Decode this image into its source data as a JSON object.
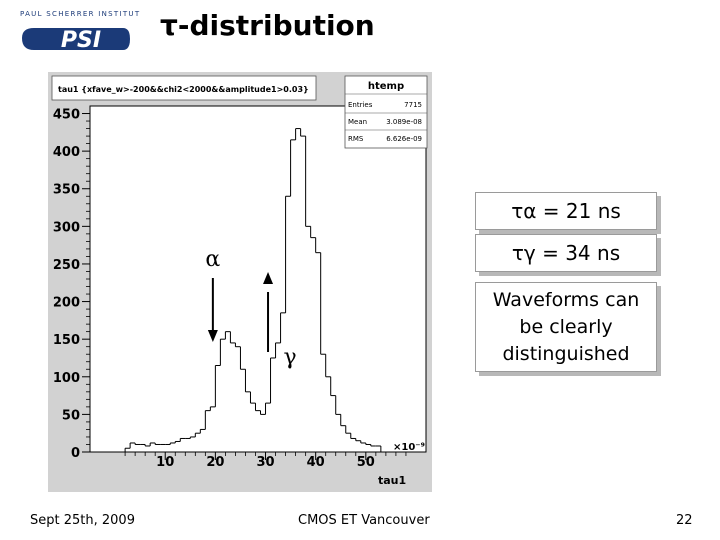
{
  "header": {
    "logo_top_text": "PAUL SCHERRER INSTITUT",
    "logo_text": "PSI",
    "title": "τ-distribution"
  },
  "chart_data": {
    "type": "histogram",
    "title": "tau1 {xfave_w>-200&&chi2<2000&&amplitude1>0.03}",
    "xlabel": "tau1",
    "x_multiplier_label": "×10⁻⁹",
    "xlim": [
      -5,
      62
    ],
    "ylim": [
      0,
      460
    ],
    "x_ticks": [
      10,
      20,
      30,
      40,
      50
    ],
    "y_ticks": [
      0,
      50,
      100,
      150,
      200,
      250,
      300,
      350,
      400,
      450
    ],
    "grid": false,
    "bin_width": 1,
    "x_start": 0,
    "values": [
      0,
      0,
      5,
      12,
      10,
      10,
      8,
      12,
      10,
      10,
      10,
      12,
      14,
      18,
      18,
      20,
      25,
      30,
      55,
      60,
      115,
      150,
      160,
      145,
      140,
      110,
      80,
      65,
      55,
      50,
      65,
      125,
      145,
      185,
      340,
      415,
      430,
      420,
      300,
      285,
      265,
      130,
      100,
      75,
      50,
      35,
      25,
      18,
      15,
      12,
      10,
      8,
      8,
      0,
      0,
      0,
      0,
      0,
      0,
      0
    ],
    "stats": {
      "name": "htemp",
      "entries_label": "Entries",
      "entries": "7715",
      "mean_label": "Mean",
      "mean": "3.089e-08",
      "rms_label": "RMS",
      "rms": "6.626e-09"
    },
    "annotations": [
      {
        "label": "α",
        "kind": "arrow-down",
        "x": 19.5
      },
      {
        "label": "γ",
        "kind": "arrow-up",
        "x": 30.5
      }
    ]
  },
  "side_notes": {
    "tau_alpha": "τα = 21 ns",
    "tau_gamma": "τγ = 34 ns",
    "waveforms": [
      "Waveforms can",
      "be clearly",
      "distinguished"
    ]
  },
  "footer": {
    "date": "Sept 25th, 2009",
    "event": "CMOS ET Vancouver",
    "page": "22"
  }
}
